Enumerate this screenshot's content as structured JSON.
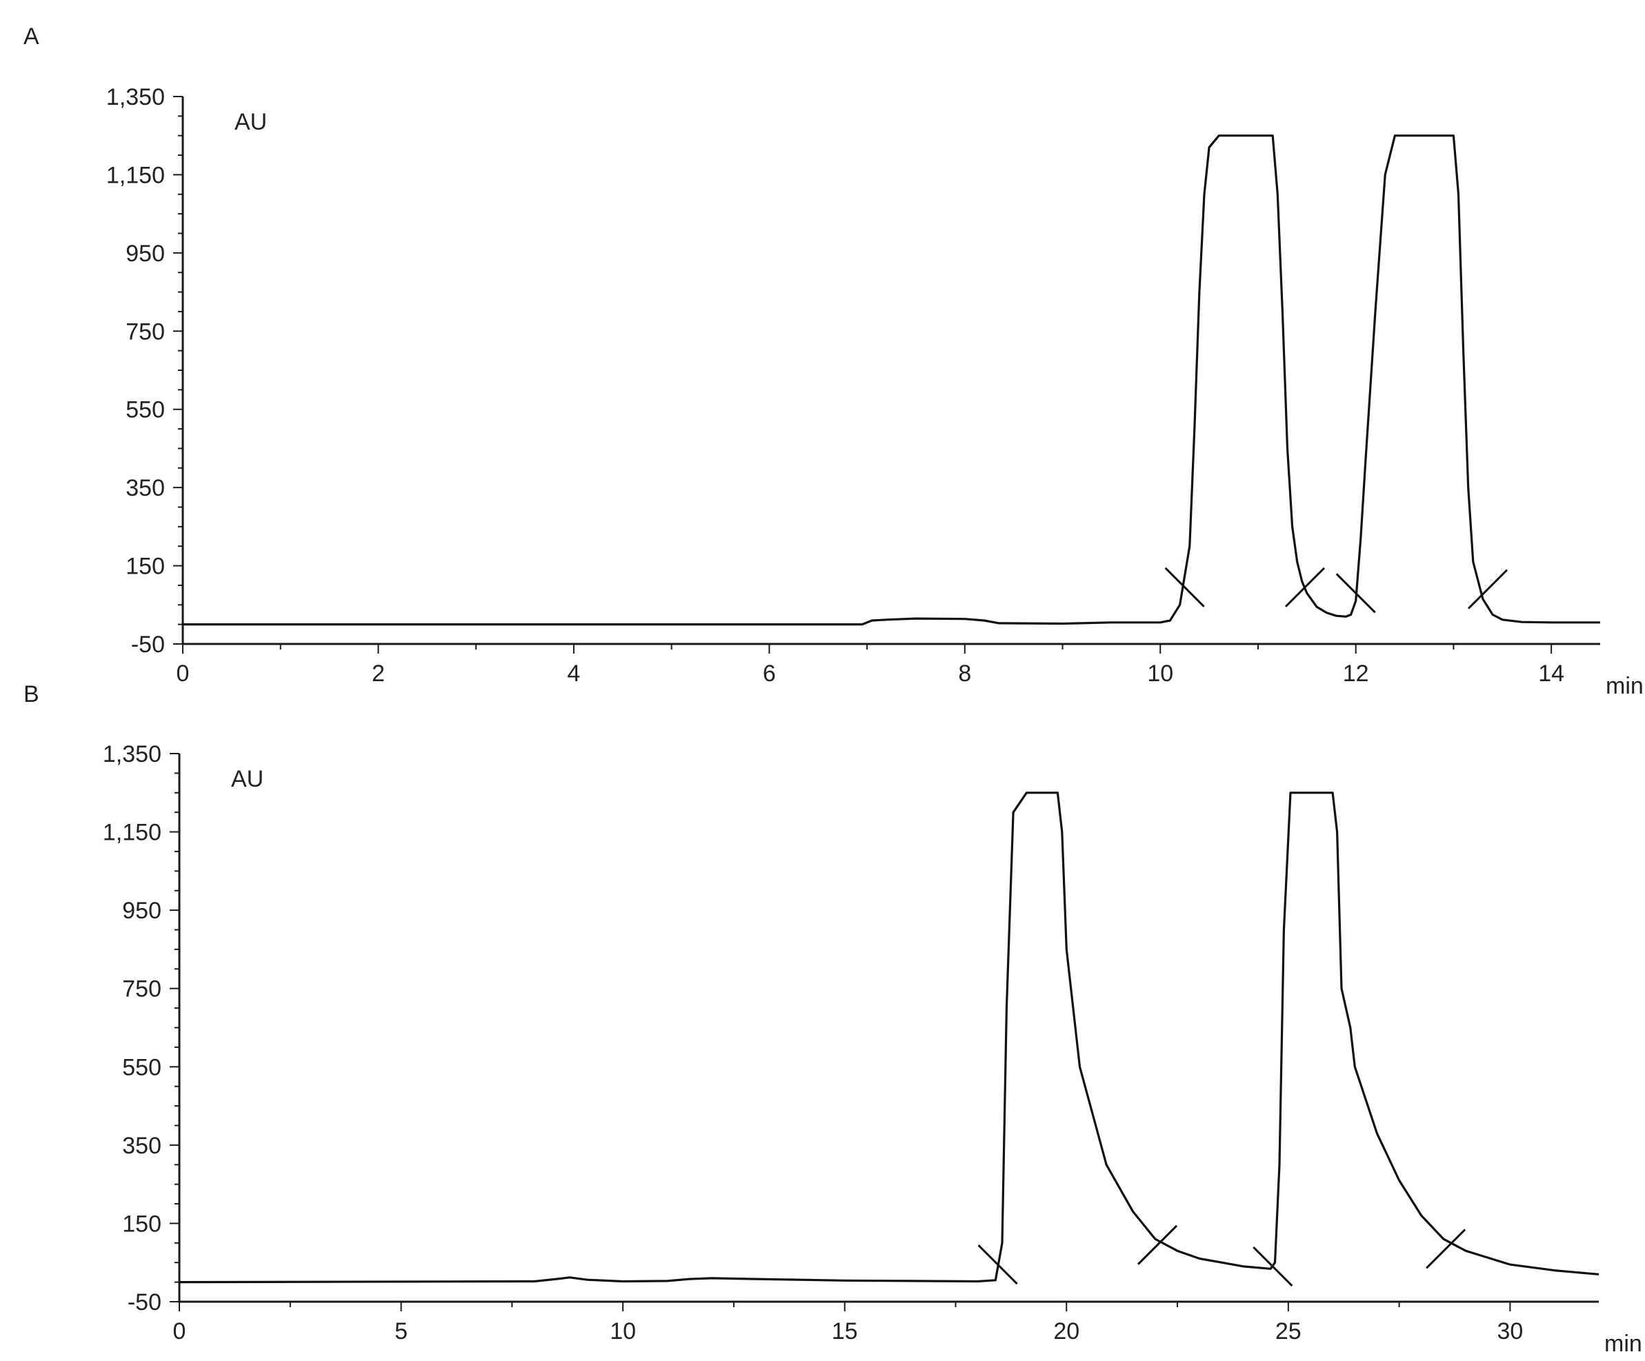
{
  "panels": [
    {
      "label": "A"
    },
    {
      "label": "B"
    }
  ],
  "chart_data": [
    {
      "type": "line",
      "panel": "A",
      "ylabel": "AU",
      "xunit": "min",
      "xlim": [
        0,
        14.5
      ],
      "ylim": [
        -50,
        1350
      ],
      "yticks": [
        -50,
        150,
        350,
        550,
        750,
        950,
        1150,
        1350
      ],
      "ytick_labels": [
        "-50",
        "150",
        "350",
        "550",
        "750",
        "950",
        "1,150",
        "1,350"
      ],
      "xticks": [
        0,
        2,
        4,
        6,
        8,
        10,
        12,
        14
      ],
      "xtick_labels": [
        "0",
        "2",
        "4",
        "6",
        "8",
        "10",
        "12",
        "14"
      ],
      "grid": false,
      "series": [
        {
          "x": [
            0,
            6.95,
            7.05,
            7.2,
            7.5,
            8.0,
            8.2,
            8.35,
            9.0,
            9.5,
            10.0,
            10.1,
            10.2,
            10.3,
            10.35,
            10.4,
            10.45,
            10.5,
            10.6,
            10.7,
            11.15,
            11.2,
            11.25,
            11.3,
            11.35,
            11.4,
            11.45,
            11.5,
            11.6,
            11.7,
            11.8,
            11.9,
            11.95,
            12.0,
            12.05,
            12.1,
            12.2,
            12.3,
            12.4,
            13.0,
            13.05,
            13.1,
            13.15,
            13.2,
            13.3,
            13.4,
            13.5,
            13.7,
            14.0,
            14.5
          ],
          "y": [
            0,
            0,
            10,
            12,
            15,
            14,
            10,
            3,
            2,
            5,
            5,
            10,
            50,
            200,
            500,
            850,
            1100,
            1220,
            1250,
            1250,
            1250,
            1100,
            800,
            450,
            250,
            160,
            110,
            80,
            45,
            30,
            22,
            20,
            25,
            60,
            220,
            420,
            800,
            1150,
            1250,
            1250,
            1100,
            700,
            350,
            160,
            65,
            25,
            12,
            6,
            5,
            5
          ]
        }
      ],
      "markers": [
        {
          "x": 10.25,
          "y": 95,
          "dir": "back"
        },
        {
          "x": 11.48,
          "y": 95,
          "dir": "fwd"
        },
        {
          "x": 12.0,
          "y": 80,
          "dir": "back"
        },
        {
          "x": 13.35,
          "y": 90,
          "dir": "fwd"
        }
      ]
    },
    {
      "type": "line",
      "panel": "B",
      "ylabel": "AU",
      "xunit": "min",
      "xlim": [
        0,
        32
      ],
      "ylim": [
        -50,
        1350
      ],
      "yticks": [
        -50,
        150,
        350,
        550,
        750,
        950,
        1150,
        1350
      ],
      "ytick_labels": [
        "-50",
        "150",
        "350",
        "550",
        "750",
        "950",
        "1,150",
        "1,350"
      ],
      "xticks": [
        0,
        5,
        10,
        15,
        20,
        25,
        30
      ],
      "xtick_labels": [
        "0",
        "5",
        "10",
        "15",
        "20",
        "25",
        "30"
      ],
      "grid": false,
      "series": [
        {
          "x": [
            0,
            8.0,
            8.5,
            8.8,
            9.2,
            10.0,
            11.0,
            11.5,
            12.0,
            13.0,
            14.0,
            15.0,
            16.5,
            18.0,
            18.4,
            18.55,
            18.65,
            18.8,
            19.1,
            19.8,
            19.9,
            20.0,
            20.1,
            20.3,
            20.9,
            21.5,
            22.0,
            22.5,
            23.0,
            24.0,
            24.5,
            24.6,
            24.7,
            24.8,
            24.9,
            25.05,
            25.3,
            26.0,
            26.1,
            26.2,
            26.4,
            26.5,
            27.0,
            27.5,
            28.0,
            28.5,
            29.0,
            30.0,
            31.0,
            32.0
          ],
          "y": [
            0,
            2,
            8,
            12,
            6,
            2,
            3,
            8,
            10,
            8,
            6,
            4,
            3,
            2,
            5,
            100,
            700,
            1200,
            1250,
            1250,
            1150,
            850,
            750,
            550,
            300,
            180,
            110,
            80,
            60,
            40,
            35,
            34,
            50,
            300,
            900,
            1250,
            1250,
            1250,
            1150,
            750,
            650,
            550,
            380,
            260,
            170,
            110,
            80,
            45,
            30,
            20
          ]
        }
      ],
      "markers": [
        {
          "x": 18.45,
          "y": 45,
          "dir": "back"
        },
        {
          "x": 22.05,
          "y": 95,
          "dir": "fwd"
        },
        {
          "x": 24.65,
          "y": 40,
          "dir": "back"
        },
        {
          "x": 28.55,
          "y": 85,
          "dir": "fwd"
        }
      ]
    }
  ]
}
